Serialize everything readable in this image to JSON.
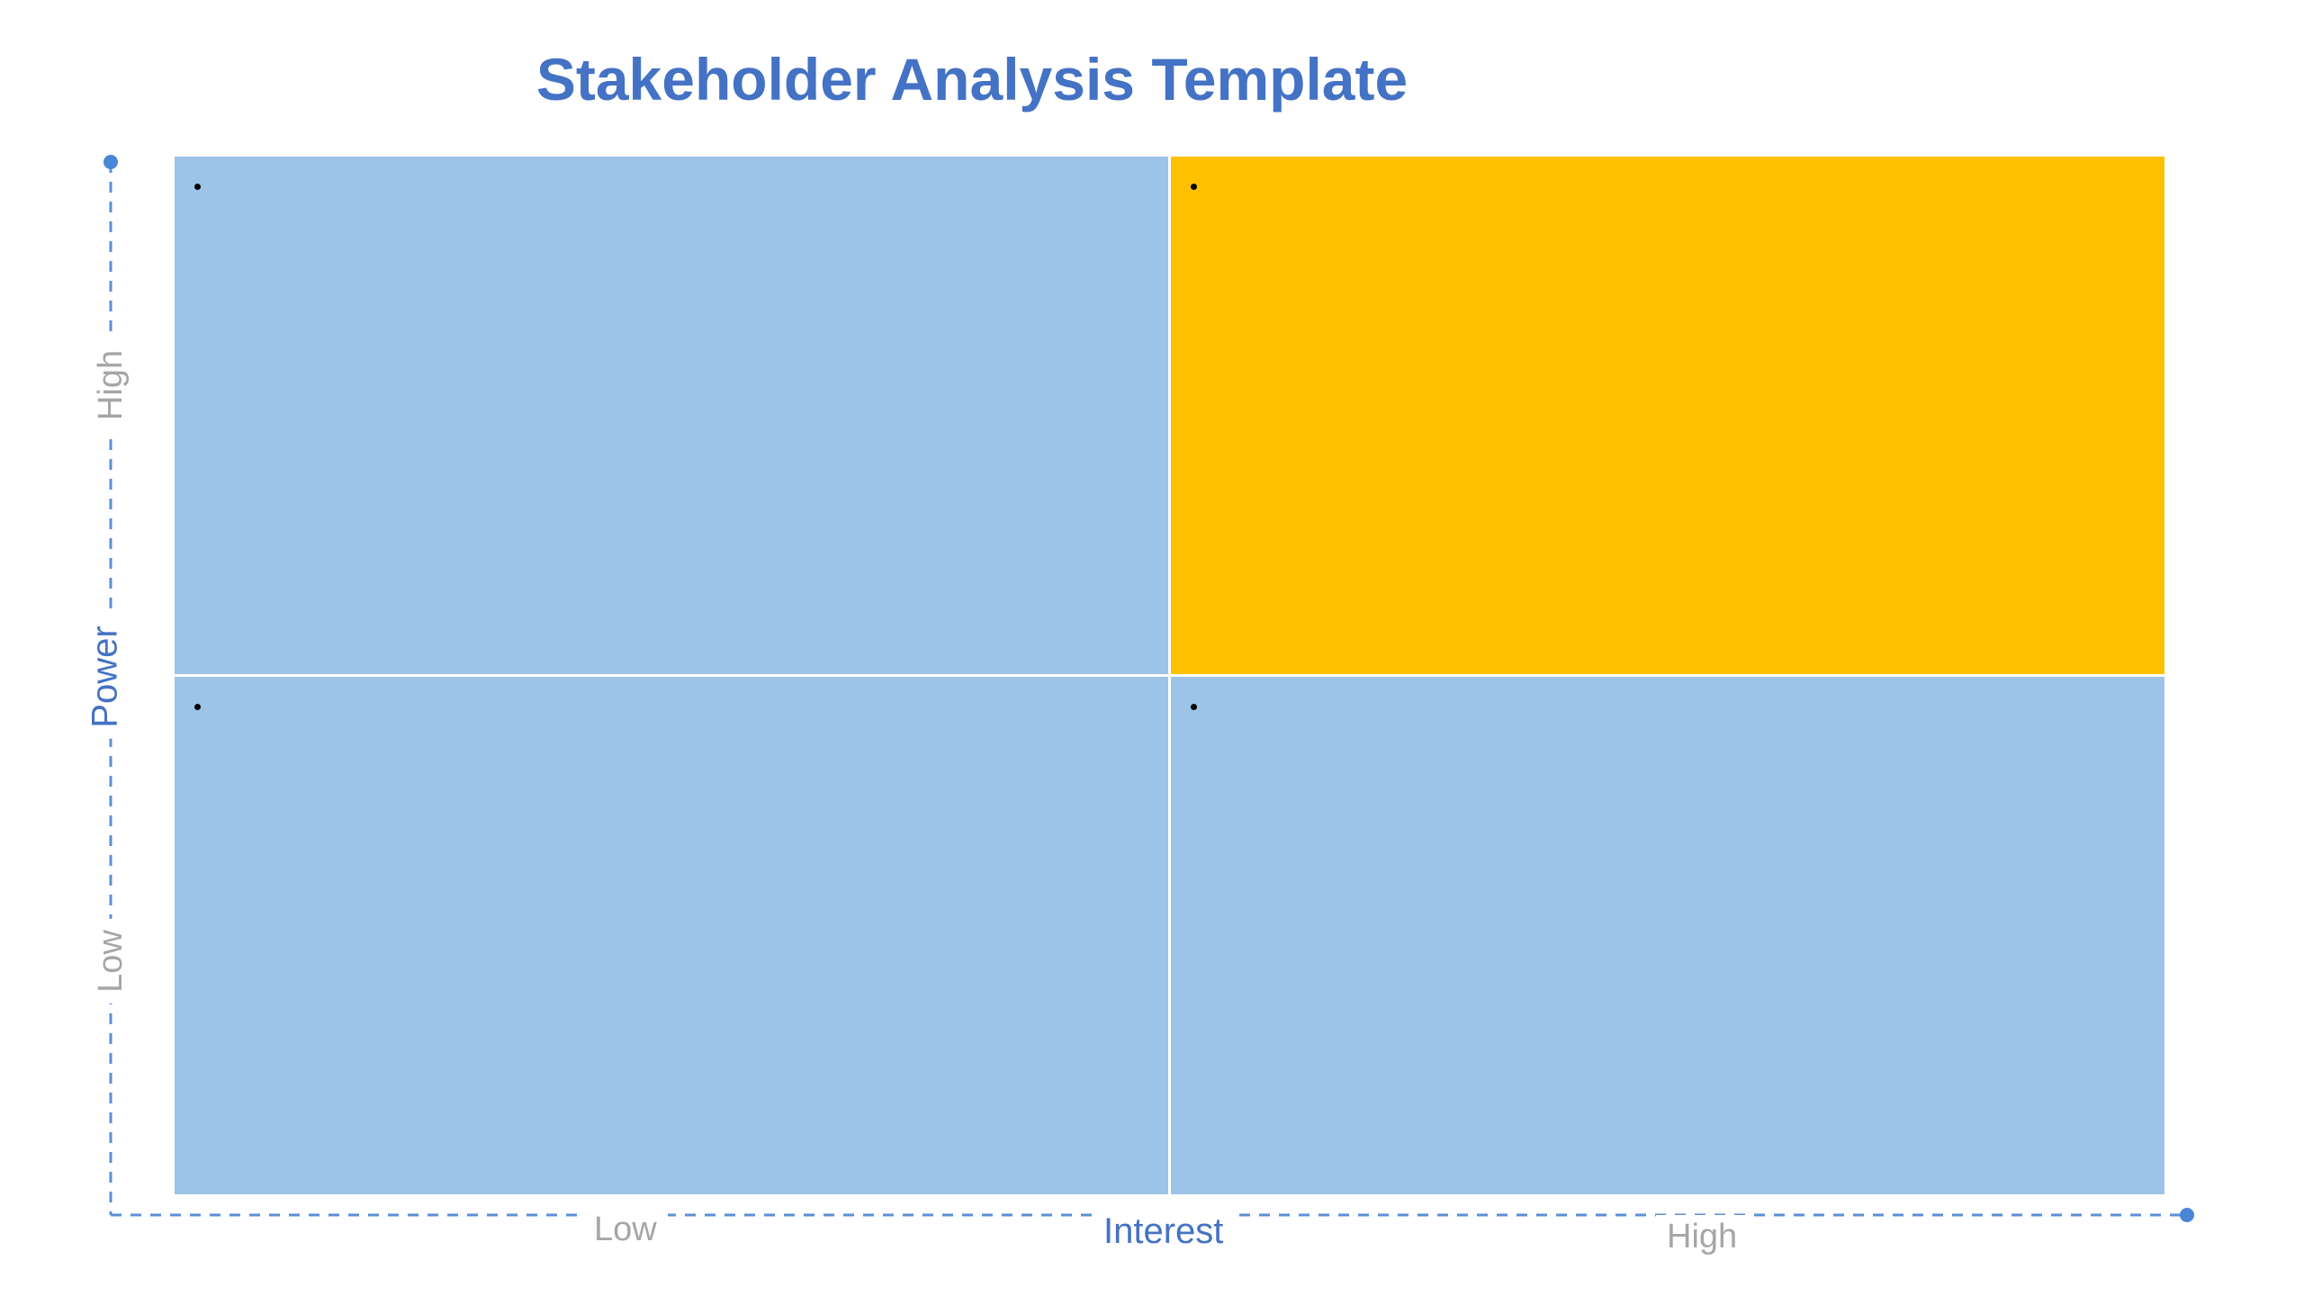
{
  "title": "Stakeholder Analysis Template",
  "colors": {
    "title": "#4472C4",
    "quadrant_blue": "#9DC3E6",
    "quadrant_gold": "#FFC000",
    "axis_line": "#5B8FD6",
    "axis_name": "#4472C4",
    "tick_label": "#A6A6A6"
  },
  "quadrants": {
    "top_left": {
      "color": "#9DC3E6",
      "items": [
        ""
      ]
    },
    "top_right": {
      "color": "#FFC000",
      "items": [
        ""
      ]
    },
    "bottom_left": {
      "color": "#9DC3E6",
      "items": [
        ""
      ]
    },
    "bottom_right": {
      "color": "#9DC3E6",
      "items": [
        ""
      ]
    }
  },
  "x_axis": {
    "name": "Interest",
    "low": "Low",
    "high": "High"
  },
  "y_axis": {
    "name": "Power",
    "low": "Low",
    "high": "High"
  }
}
